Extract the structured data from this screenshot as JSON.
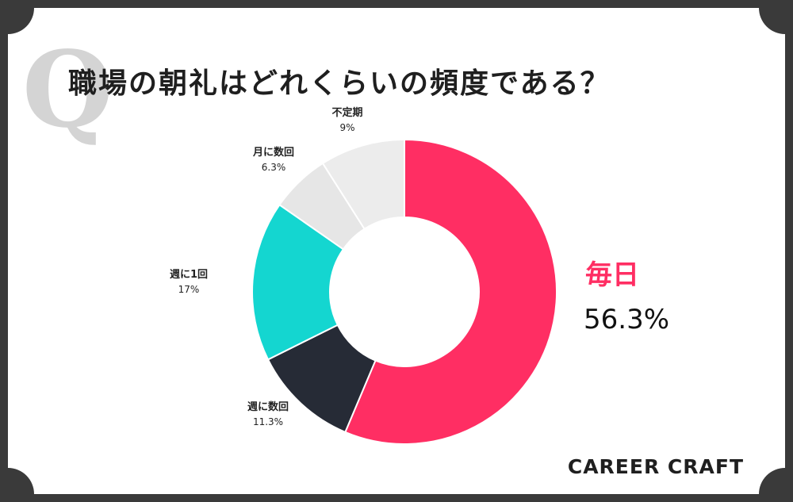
{
  "title": "職場の朝礼はどれくらいの頻度である？",
  "watermark_letter": "Q",
  "brand": "CAREER CRAFT",
  "colors": {
    "accent": "#ff2e63",
    "teal": "#14d6d0",
    "navy": "#262b36",
    "light_gray": "#e6e6e6",
    "lighter_gray": "#ececec",
    "frame": "#3a3a3a"
  },
  "chart_data": {
    "type": "pie",
    "variant": "donut",
    "title": "職場の朝礼はどれくらいの頻度である？",
    "slices": [
      {
        "label": "毎日",
        "pct_text": "56.3%",
        "value": 56.3,
        "color": "#ff2e63"
      },
      {
        "label": "週に数回",
        "pct_text": "11.3%",
        "value": 11.3,
        "color": "#262b36"
      },
      {
        "label": "週に1回",
        "pct_text": "17%",
        "value": 17,
        "color": "#14d6d0"
      },
      {
        "label": "月に数回",
        "pct_text": "6.3%",
        "value": 6.3,
        "color": "#e6e6e6"
      },
      {
        "label": "不定期",
        "pct_text": "9%",
        "value": 9,
        "color": "#ececec"
      }
    ],
    "start": "top",
    "direction": "clockwise"
  }
}
